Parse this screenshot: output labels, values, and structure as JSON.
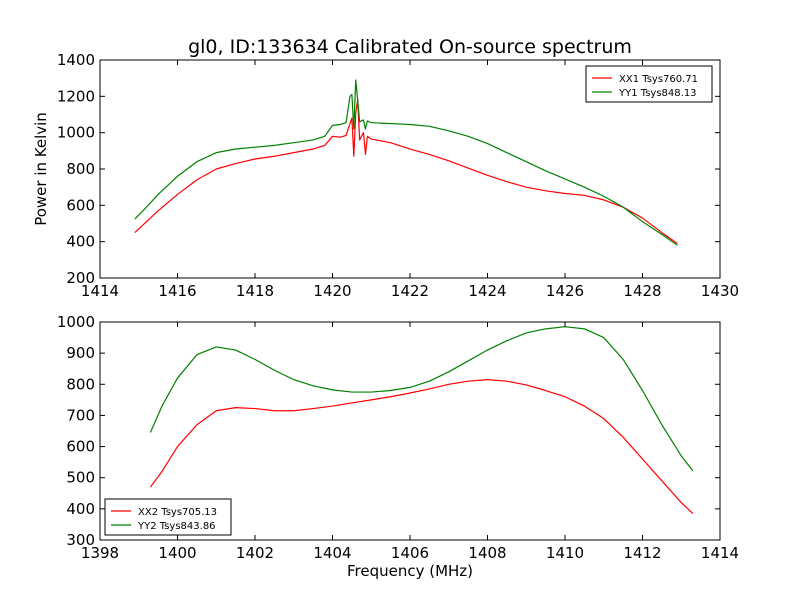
{
  "chart_data": [
    {
      "type": "line",
      "title": "gl0, ID:133634 Calibrated On-source spectrum",
      "xlabel": "",
      "ylabel": "Power in Kelvin",
      "xlim": [
        1414,
        1430
      ],
      "ylim": [
        200,
        1400
      ],
      "xticks": [
        "1414",
        "1416",
        "1418",
        "1420",
        "1422",
        "1424",
        "1426",
        "1428",
        "1430"
      ],
      "yticks": [
        "200",
        "400",
        "600",
        "800",
        "1000",
        "1200",
        "1400"
      ],
      "legend": "top-right",
      "series": [
        {
          "name": "XX1 Tsys760.71",
          "color": "#ff0000",
          "x": [
            1414.9,
            1415.2,
            1415.5,
            1416.0,
            1416.5,
            1417.0,
            1417.5,
            1418.0,
            1418.5,
            1419.0,
            1419.5,
            1419.8,
            1420.0,
            1420.2,
            1420.35,
            1420.45,
            1420.5,
            1420.55,
            1420.6,
            1420.65,
            1420.7,
            1420.8,
            1420.85,
            1420.9,
            1421.0,
            1421.5,
            1422.0,
            1422.5,
            1423.0,
            1423.5,
            1424.0,
            1424.5,
            1425.0,
            1425.5,
            1426.0,
            1426.5,
            1427.0,
            1427.5,
            1428.0,
            1428.5,
            1428.9
          ],
          "y": [
            450,
            510,
            570,
            660,
            740,
            800,
            830,
            855,
            870,
            890,
            910,
            930,
            980,
            975,
            985,
            1050,
            1080,
            870,
            1110,
            1180,
            960,
            1000,
            880,
            980,
            965,
            945,
            910,
            880,
            845,
            805,
            765,
            730,
            700,
            680,
            665,
            655,
            630,
            590,
            530,
            450,
            390
          ]
        },
        {
          "name": "YY1 Tsys848.13",
          "color": "#008000",
          "x": [
            1414.9,
            1415.2,
            1415.5,
            1416.0,
            1416.5,
            1417.0,
            1417.5,
            1418.0,
            1418.5,
            1419.0,
            1419.5,
            1419.8,
            1420.0,
            1420.2,
            1420.35,
            1420.45,
            1420.5,
            1420.55,
            1420.6,
            1420.65,
            1420.7,
            1420.8,
            1420.85,
            1420.9,
            1421.0,
            1421.5,
            1422.0,
            1422.5,
            1423.0,
            1423.5,
            1424.0,
            1424.5,
            1425.0,
            1425.5,
            1426.0,
            1426.5,
            1427.0,
            1427.5,
            1428.0,
            1428.5,
            1428.9
          ],
          "y": [
            525,
            590,
            660,
            760,
            840,
            890,
            910,
            920,
            930,
            945,
            960,
            980,
            1040,
            1045,
            1055,
            1200,
            1210,
            1020,
            1290,
            1180,
            1060,
            1070,
            1020,
            1065,
            1055,
            1050,
            1045,
            1035,
            1010,
            980,
            940,
            890,
            840,
            790,
            745,
            700,
            650,
            590,
            510,
            440,
            380
          ]
        }
      ]
    },
    {
      "type": "line",
      "title": "",
      "xlabel": "Frequency (MHz)",
      "ylabel": "",
      "xlim": [
        1398,
        1414
      ],
      "ylim": [
        300,
        1000
      ],
      "xticks": [
        "1398",
        "1400",
        "1402",
        "1404",
        "1406",
        "1408",
        "1410",
        "1412",
        "1414"
      ],
      "yticks": [
        "300",
        "400",
        "500",
        "600",
        "700",
        "800",
        "900",
        "1000"
      ],
      "legend": "bottom-left",
      "series": [
        {
          "name": "XX2 Tsys705.13",
          "color": "#ff0000",
          "x": [
            1399.3,
            1399.6,
            1400.0,
            1400.5,
            1401.0,
            1401.5,
            1402.0,
            1402.5,
            1403.0,
            1403.5,
            1404.0,
            1404.5,
            1405.0,
            1405.5,
            1406.0,
            1406.5,
            1407.0,
            1407.5,
            1408.0,
            1408.5,
            1409.0,
            1409.5,
            1410.0,
            1410.5,
            1411.0,
            1411.5,
            1412.0,
            1412.5,
            1413.0,
            1413.3
          ],
          "y": [
            470,
            520,
            600,
            670,
            715,
            725,
            722,
            715,
            715,
            722,
            730,
            740,
            750,
            760,
            772,
            785,
            800,
            810,
            815,
            810,
            798,
            780,
            760,
            730,
            690,
            630,
            560,
            490,
            420,
            385
          ]
        },
        {
          "name": "YY2 Tsys843.86",
          "color": "#008000",
          "x": [
            1399.3,
            1399.6,
            1400.0,
            1400.5,
            1401.0,
            1401.5,
            1402.0,
            1402.5,
            1403.0,
            1403.5,
            1404.0,
            1404.5,
            1405.0,
            1405.5,
            1406.0,
            1406.5,
            1407.0,
            1407.5,
            1408.0,
            1408.5,
            1409.0,
            1409.5,
            1410.0,
            1410.5,
            1411.0,
            1411.5,
            1412.0,
            1412.5,
            1413.0,
            1413.3
          ],
          "y": [
            645,
            730,
            820,
            895,
            920,
            910,
            880,
            845,
            815,
            795,
            782,
            775,
            775,
            780,
            790,
            810,
            840,
            875,
            910,
            940,
            965,
            978,
            985,
            978,
            950,
            880,
            780,
            670,
            570,
            522
          ]
        }
      ]
    }
  ]
}
